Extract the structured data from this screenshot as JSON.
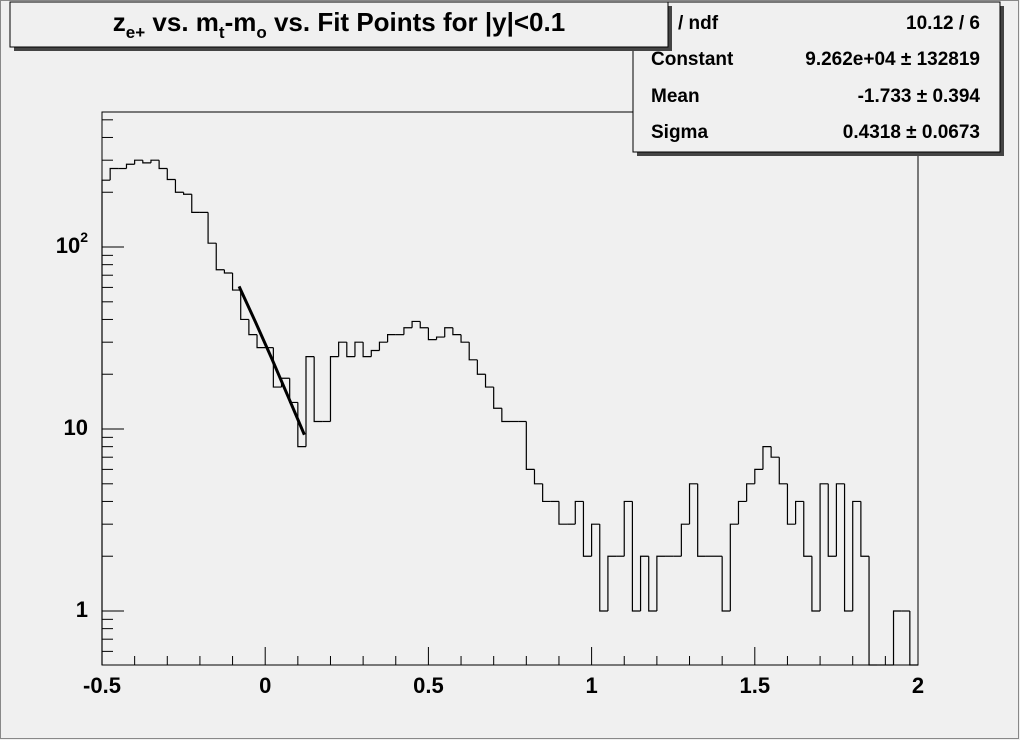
{
  "chart_data": {
    "type": "histogram",
    "title": [
      {
        "text": "z"
      },
      {
        "text": "e+",
        "sub": true
      },
      {
        "text": " vs. m"
      },
      {
        "text": "t",
        "sub": true
      },
      {
        "text": "-m"
      },
      {
        "text": "o",
        "sub": true
      },
      {
        "text": " vs. Fit Points for |y|<0.1"
      }
    ],
    "bins": [
      -0.5,
      -0.475,
      -0.45,
      -0.425,
      -0.4,
      -0.375,
      -0.35,
      -0.325,
      -0.3,
      -0.275,
      -0.25,
      -0.225,
      -0.2,
      -0.175,
      -0.15,
      -0.125,
      -0.1,
      -0.075,
      -0.05,
      -0.025,
      0,
      0.025,
      0.05,
      0.075,
      0.1,
      0.125,
      0.15,
      0.175,
      0.2,
      0.225,
      0.25,
      0.275,
      0.3,
      0.325,
      0.35,
      0.375,
      0.4,
      0.425,
      0.45,
      0.475,
      0.5,
      0.525,
      0.55,
      0.575,
      0.6,
      0.625,
      0.65,
      0.675,
      0.7,
      0.725,
      0.75,
      0.775,
      0.8,
      0.825,
      0.85,
      0.875,
      0.9,
      0.925,
      0.95,
      0.975,
      1,
      1.025,
      1.05,
      1.075,
      1.1,
      1.125,
      1.15,
      1.175,
      1.2,
      1.225,
      1.25,
      1.275,
      1.3,
      1.325,
      1.35,
      1.375,
      1.4,
      1.425,
      1.45,
      1.475,
      1.5,
      1.525,
      1.55,
      1.575,
      1.6,
      1.625,
      1.65,
      1.675,
      1.7,
      1.725,
      1.75,
      1.775,
      1.8,
      1.825,
      1.85,
      1.875,
      1.9,
      1.925,
      1.95,
      1.975,
      2
    ],
    "values": [
      233,
      270,
      270,
      285,
      300,
      290,
      300,
      270,
      235,
      200,
      195,
      155,
      155,
      105,
      75,
      72,
      58,
      40,
      33,
      28,
      28,
      17,
      19,
      14,
      8,
      25,
      11,
      11,
      25,
      30,
      25,
      30,
      25,
      27,
      30,
      33,
      33,
      36,
      39,
      36,
      31,
      32,
      36,
      33,
      30,
      24,
      20,
      17,
      13,
      11,
      11,
      11,
      6,
      5,
      4,
      4,
      3,
      3,
      4,
      2,
      3,
      1,
      2,
      2,
      4,
      1,
      2,
      1,
      2,
      2,
      2,
      3,
      5,
      2,
      2,
      2,
      1,
      3,
      4,
      5,
      6,
      8,
      7,
      5,
      3,
      4,
      2,
      1,
      5,
      2,
      5,
      1,
      4,
      2,
      0,
      0,
      0,
      1,
      1,
      0
    ],
    "color": "#000000",
    "fit": {
      "x": [
        -0.08,
        -0.03,
        0.02,
        0.07,
        0.12
      ],
      "values": [
        60.8,
        38.8,
        24.4,
        15.1,
        9.3
      ],
      "color": "#000000"
    },
    "xlim": [
      -0.5,
      2
    ],
    "xticks": [
      -0.5,
      0,
      0.5,
      1,
      1.5,
      2
    ],
    "xminorticks": [
      -0.4,
      -0.3,
      -0.2,
      -0.1,
      0.1,
      0.2,
      0.3,
      0.4,
      0.6,
      0.7,
      0.8,
      0.9,
      1.1,
      1.2,
      1.3,
      1.4,
      1.6,
      1.7,
      1.8,
      1.9
    ],
    "ylim": [
      0.505,
      552
    ],
    "log_y": true,
    "yticks": [
      1,
      10,
      {
        "value": 100,
        "label": "10",
        "exponent": "2"
      }
    ],
    "yminorticks": [
      0.6,
      0.7,
      0.8,
      0.9,
      2,
      3,
      4,
      5,
      6,
      7,
      8,
      9,
      20,
      30,
      40,
      50,
      60,
      70,
      80,
      90,
      200,
      300,
      400,
      500
    ],
    "stats": [
      [
        "/ ndf",
        "10.12 / 6"
      ],
      [
        "Constant",
        "9.262e+04 ± 132819"
      ],
      [
        "Mean",
        "-1.733 ± 0.394"
      ],
      [
        "Sigma",
        "0.4318 ± 0.0673"
      ]
    ]
  }
}
